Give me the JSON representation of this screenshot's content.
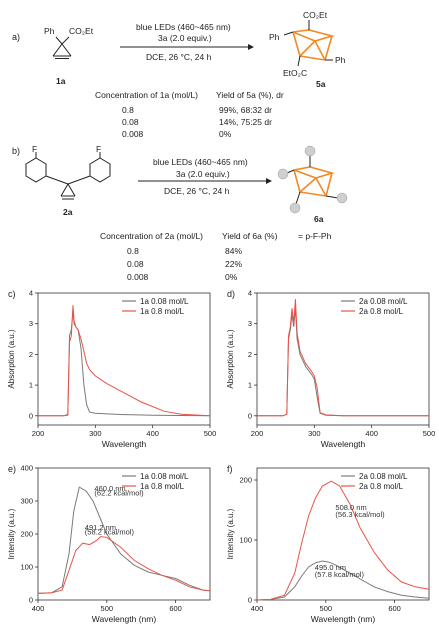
{
  "panel_a": {
    "label": "a)",
    "reactant_substituent": "Ph",
    "reactant_ester": "CO₂Et",
    "reactant_id": "1a",
    "reagent": "3a (2.0 equiv.)",
    "conditions_light": "blue LEDs (460~465 nm)",
    "conditions_solvent": "DCE, 26 °C, 24 h",
    "product_ester_top": "CO₂Et",
    "product_ph_left": "Ph",
    "product_ph_right": "Ph",
    "product_ester_bottom": "EtO₂C",
    "product_id": "5a",
    "header_conc": "Concentration of 1a (mol/L)",
    "header_yield": "Yield of 5a (%), dr",
    "rows": [
      {
        "conc": "0.8",
        "yield": "99%, 68:32 dr"
      },
      {
        "conc": "0.08",
        "yield": "14%, 75:25 dr"
      },
      {
        "conc": "0.008",
        "yield": "0%"
      }
    ]
  },
  "panel_b": {
    "label": "b)",
    "reactant_f1": "F",
    "reactant_f2": "F",
    "reactant_id": "2a",
    "reagent": "3a (2.0 equiv.)",
    "conditions_light": "blue LEDs (460~465 nm)",
    "conditions_solvent": "DCE, 26 °C, 24 h",
    "product_id": "6a",
    "legend_text": "= p-F-Ph",
    "header_conc": "Concentration of 2a (mol/L)",
    "header_yield": "Yield of 6a (%)",
    "rows": [
      {
        "conc": "0.8",
        "yield": "84%"
      },
      {
        "conc": "0.08",
        "yield": "22%"
      },
      {
        "conc": "0.008",
        "yield": "0%"
      }
    ]
  },
  "colors": {
    "gray": "#7a7a7a",
    "red": "#e8534a",
    "orange": "#f08a24"
  },
  "chart_data": [
    {
      "panel": "c)",
      "type": "line",
      "xlabel": "Wavelength",
      "ylabel": "Absorption (a.u.)",
      "xlim": [
        200,
        500
      ],
      "ylim": [
        -0.3,
        4
      ],
      "xticks": [
        200,
        300,
        400,
        500
      ],
      "yticks": [
        0,
        1,
        2,
        3,
        4
      ],
      "legend": "top-right",
      "series": [
        {
          "name": "1a 0.08 mol/L",
          "color": "#7a7a7a",
          "x": [
            200,
            245,
            252,
            255,
            258,
            261,
            263,
            266,
            270,
            275,
            280,
            285,
            290,
            300,
            320,
            350,
            400,
            450,
            500
          ],
          "y": [
            0,
            0,
            0.02,
            2.6,
            2.8,
            3.4,
            3.0,
            2.9,
            2.8,
            2.2,
            1.0,
            0.35,
            0.12,
            0.08,
            0.06,
            0.04,
            0.02,
            0.01,
            0
          ]
        },
        {
          "name": "1a 0.8 mol/L",
          "color": "#e8534a",
          "x": [
            200,
            245,
            252,
            255,
            258,
            261,
            263,
            266,
            270,
            275,
            280,
            285,
            290,
            300,
            320,
            350,
            380,
            400,
            420,
            450,
            500
          ],
          "y": [
            0,
            0,
            0.05,
            2.4,
            2.6,
            3.6,
            3.1,
            2.9,
            2.8,
            2.5,
            2.1,
            1.7,
            1.5,
            1.3,
            1.05,
            0.75,
            0.45,
            0.3,
            0.15,
            0.05,
            0
          ]
        }
      ]
    },
    {
      "panel": "d)",
      "type": "line",
      "xlabel": "Wavelength",
      "ylabel": "Absorption (a.u.)",
      "xlim": [
        200,
        500
      ],
      "ylim": [
        -0.3,
        4
      ],
      "xticks": [
        200,
        300,
        400,
        500
      ],
      "yticks": [
        0,
        1,
        2,
        3,
        4
      ],
      "legend": "top-right",
      "series": [
        {
          "name": "2a 0.08 mol/L",
          "color": "#7a7a7a",
          "x": [
            200,
            245,
            252,
            255,
            258,
            261,
            264,
            267,
            270,
            275,
            285,
            295,
            300,
            305,
            310,
            320,
            350,
            400,
            500
          ],
          "y": [
            0,
            0,
            0.05,
            2.5,
            2.8,
            3.3,
            2.9,
            3.5,
            2.5,
            2.0,
            1.6,
            1.35,
            1.2,
            0.6,
            0.08,
            0.02,
            0,
            0,
            0
          ]
        },
        {
          "name": "2a 0.8 mol/L",
          "color": "#e8534a",
          "x": [
            200,
            245,
            252,
            255,
            258,
            261,
            264,
            267,
            270,
            275,
            285,
            295,
            300,
            305,
            310,
            320,
            350,
            400,
            500
          ],
          "y": [
            0,
            0,
            0.05,
            2.6,
            2.9,
            3.5,
            3.0,
            3.8,
            2.7,
            2.1,
            1.7,
            1.45,
            1.3,
            0.9,
            0.1,
            0.03,
            0,
            0,
            0
          ]
        }
      ]
    },
    {
      "panel": "e)",
      "type": "line",
      "xlabel": "Wavelength (nm)",
      "ylabel": "Intensity (a.u.)",
      "xlim": [
        400,
        650
      ],
      "ylim": [
        0,
        400
      ],
      "xticks": [
        400,
        500,
        600
      ],
      "yticks": [
        0,
        100,
        200,
        300,
        400
      ],
      "legend": "top-right",
      "annotations": [
        "460.0 nm",
        "(62.2 kcal/mol)",
        "491.2 nm",
        "(58.2 kcal/mol)"
      ],
      "series": [
        {
          "name": "1a 0.08 mol/L",
          "color": "#7a7a7a",
          "x": [
            400,
            420,
            435,
            445,
            452,
            460,
            470,
            480,
            490,
            500,
            520,
            540,
            560,
            580,
            600,
            620,
            640,
            650
          ],
          "y": [
            20,
            22,
            40,
            140,
            270,
            342,
            330,
            300,
            250,
            200,
            140,
            105,
            85,
            75,
            65,
            45,
            30,
            28
          ]
        },
        {
          "name": "1a 0.8 mol/L",
          "color": "#e8534a",
          "x": [
            400,
            420,
            435,
            445,
            455,
            465,
            475,
            485,
            491,
            500,
            520,
            540,
            560,
            580,
            600,
            620,
            640,
            650
          ],
          "y": [
            20,
            22,
            30,
            90,
            150,
            172,
            168,
            180,
            192,
            190,
            160,
            120,
            95,
            75,
            60,
            40,
            30,
            28
          ]
        }
      ]
    },
    {
      "panel": "f)",
      "type": "line",
      "xlabel": "Wavelength (nm)",
      "ylabel": "Intensity (a.u.)",
      "xlim": [
        400,
        650
      ],
      "ylim": [
        0,
        220
      ],
      "xticks": [
        400,
        500,
        600
      ],
      "yticks": [
        0,
        100,
        200
      ],
      "legend": "top-right",
      "annotations": [
        "508.0 nm",
        "(56.3 kcal/mol)",
        "495.0 nm",
        "(57.8 kcal/mol)"
      ],
      "series": [
        {
          "name": "2a 0.08 mol/L",
          "color": "#7a7a7a",
          "x": [
            400,
            420,
            440,
            455,
            465,
            475,
            485,
            495,
            505,
            515,
            530,
            550,
            570,
            590,
            610,
            630,
            650
          ],
          "y": [
            0,
            1,
            5,
            22,
            40,
            55,
            62,
            65,
            63,
            58,
            48,
            35,
            22,
            14,
            8,
            5,
            3
          ]
        },
        {
          "name": "2a 0.8 mol/L",
          "color": "#e8534a",
          "x": [
            400,
            420,
            440,
            455,
            465,
            475,
            485,
            495,
            508,
            520,
            535,
            550,
            570,
            590,
            610,
            630,
            650
          ],
          "y": [
            0,
            1,
            8,
            45,
            95,
            140,
            170,
            190,
            198,
            190,
            160,
            120,
            80,
            50,
            30,
            22,
            18
          ]
        }
      ]
    }
  ]
}
